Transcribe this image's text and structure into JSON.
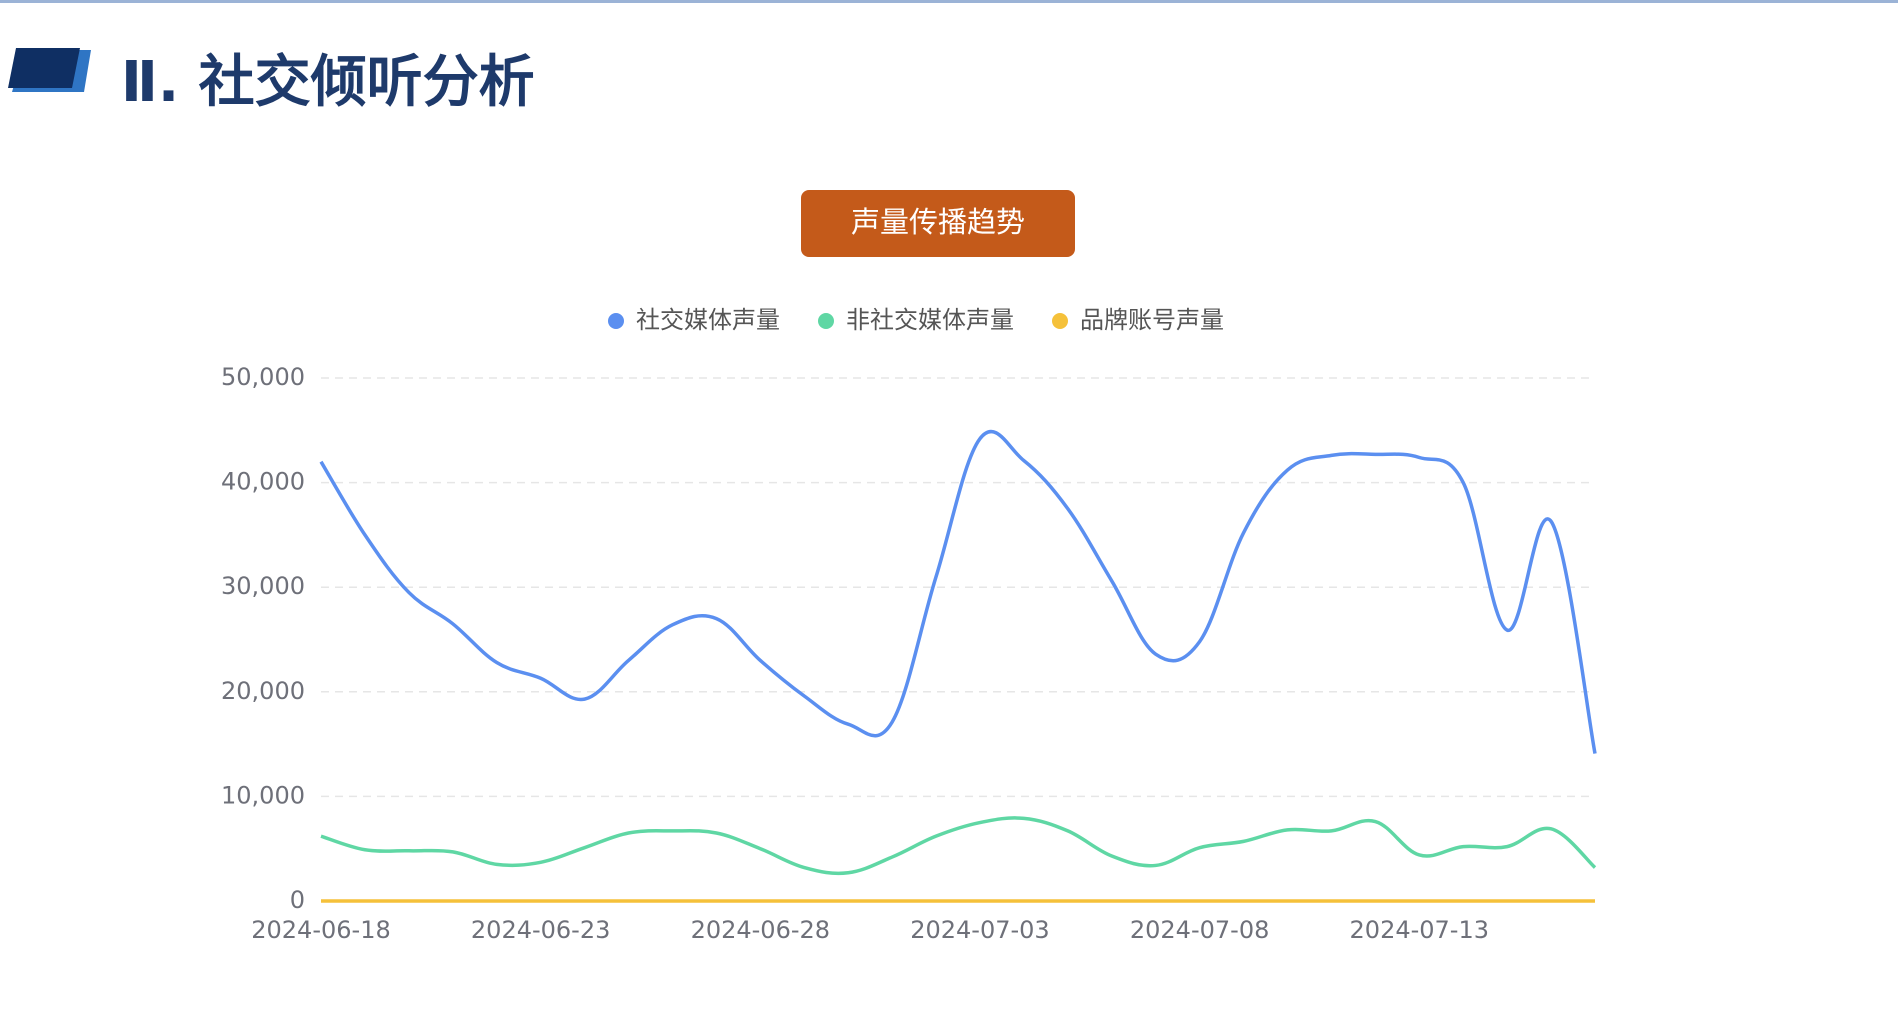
{
  "header": {
    "title": "Ⅱ. 社交倾听分析"
  },
  "chart_data": {
    "type": "line",
    "title": "声量传播趋势",
    "categories": [
      "2024-06-18",
      null,
      null,
      null,
      null,
      "2024-06-23",
      null,
      null,
      null,
      null,
      "2024-06-28",
      null,
      null,
      null,
      null,
      "2024-07-03",
      null,
      null,
      null,
      null,
      "2024-07-08",
      null,
      null,
      null,
      null,
      "2024-07-13",
      null,
      null,
      null,
      null
    ],
    "series": [
      {
        "name": "社交媒体声量",
        "color": "#5b8ff0",
        "values": [
          42000,
          35000,
          29500,
          26500,
          22800,
          21300,
          19300,
          23000,
          26400,
          27000,
          23000,
          19600,
          16900,
          17100,
          31000,
          44200,
          42100,
          37500,
          30600,
          23600,
          24800,
          35200,
          41200,
          42600,
          42700,
          42400,
          40000,
          25900,
          36300,
          14100
        ]
      },
      {
        "name": "非社交媒体声量",
        "color": "#5fd7a4",
        "values": [
          6200,
          4900,
          4800,
          4700,
          3500,
          3700,
          5100,
          6500,
          6700,
          6500,
          5000,
          3200,
          2700,
          4200,
          6200,
          7500,
          7900,
          6700,
          4300,
          3400,
          5100,
          5700,
          6800,
          6700,
          7600,
          4400,
          5200,
          5200,
          6900,
          3200
        ]
      },
      {
        "name": "品牌账号声量",
        "color": "#f5c13a",
        "values": [
          0,
          0,
          0,
          0,
          0,
          0,
          0,
          0,
          0,
          0,
          0,
          0,
          0,
          0,
          0,
          0,
          0,
          0,
          0,
          0,
          0,
          0,
          0,
          0,
          0,
          0,
          0,
          0,
          0,
          0
        ]
      }
    ],
    "ylim": [
      0,
      50000
    ],
    "yticks": [
      0,
      {
        "value": 10000,
        "label": "10,000"
      },
      {
        "value": 20000,
        "label": "20,000"
      },
      {
        "value": 30000,
        "label": "30,000"
      },
      {
        "value": 40000,
        "label": "40,000"
      },
      {
        "value": 50000,
        "label": "50,000"
      }
    ],
    "grid": true,
    "legend": "top"
  }
}
